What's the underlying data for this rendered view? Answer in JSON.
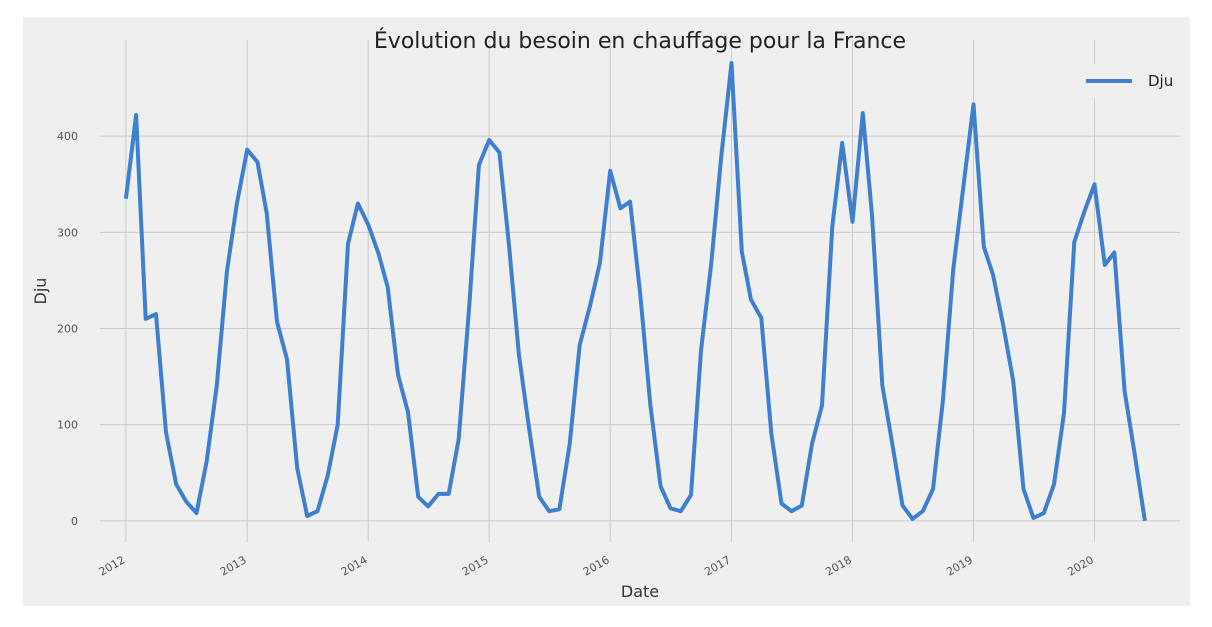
{
  "chart_data": {
    "type": "line",
    "title": "Évolution du besoin en chauffage pour la France",
    "xlabel": "Date",
    "ylabel": "Dju",
    "x_type": "date",
    "xlim": [
      "2011-10-15",
      "2020-09-15"
    ],
    "ylim": [
      -22,
      500
    ],
    "yticks": [
      0,
      100,
      200,
      300,
      400
    ],
    "xticks": [
      "2012",
      "2013",
      "2014",
      "2015",
      "2016",
      "2017",
      "2018",
      "2019",
      "2020"
    ],
    "grid": true,
    "legend": {
      "position": "top-right"
    },
    "series": [
      {
        "name": "Dju",
        "color": "#3f7fcf",
        "x": [
          "2012-01",
          "2012-02",
          "2012-03",
          "2012-04",
          "2012-05",
          "2012-06",
          "2012-07",
          "2012-08",
          "2012-09",
          "2012-10",
          "2012-11",
          "2012-12",
          "2013-01",
          "2013-02",
          "2013-03",
          "2013-04",
          "2013-05",
          "2013-06",
          "2013-07",
          "2013-08",
          "2013-09",
          "2013-10",
          "2013-11",
          "2013-12",
          "2014-01",
          "2014-02",
          "2014-03",
          "2014-04",
          "2014-05",
          "2014-06",
          "2014-07",
          "2014-08",
          "2014-09",
          "2014-10",
          "2014-11",
          "2014-12",
          "2015-01",
          "2015-02",
          "2015-03",
          "2015-04",
          "2015-05",
          "2015-06",
          "2015-07",
          "2015-08",
          "2015-09",
          "2015-10",
          "2015-11",
          "2015-12",
          "2016-01",
          "2016-02",
          "2016-03",
          "2016-04",
          "2016-05",
          "2016-06",
          "2016-07",
          "2016-08",
          "2016-09",
          "2016-10",
          "2016-11",
          "2016-12",
          "2017-01",
          "2017-02",
          "2017-03",
          "2017-04",
          "2017-05",
          "2017-06",
          "2017-07",
          "2017-08",
          "2017-09",
          "2017-10",
          "2017-11",
          "2017-12",
          "2018-01",
          "2018-02",
          "2018-03",
          "2018-04",
          "2018-05",
          "2018-06",
          "2018-07",
          "2018-08",
          "2018-09",
          "2018-10",
          "2018-11",
          "2018-12",
          "2019-01",
          "2019-02",
          "2019-03",
          "2019-04",
          "2019-05",
          "2019-06",
          "2019-07",
          "2019-08",
          "2019-09",
          "2019-10",
          "2019-11",
          "2019-12",
          "2020-01",
          "2020-02",
          "2020-03",
          "2020-04",
          "2020-05",
          "2020-06"
        ],
        "values": [
          335,
          422,
          210,
          215,
          92,
          38,
          20,
          8,
          62,
          140,
          260,
          330,
          386,
          373,
          320,
          207,
          168,
          55,
          5,
          10,
          47,
          100,
          288,
          330,
          308,
          278,
          243,
          152,
          113,
          25,
          15,
          28,
          28,
          85,
          220,
          370,
          396,
          383,
          290,
          172,
          97,
          25,
          10,
          12,
          80,
          183,
          223,
          268,
          364,
          325,
          332,
          235,
          121,
          36,
          13,
          10,
          27,
          177,
          268,
          378,
          476,
          280,
          230,
          211,
          91,
          18,
          10,
          16,
          80,
          120,
          306,
          393,
          311,
          424,
          318,
          141,
          80,
          16,
          2,
          10,
          33,
          126,
          262,
          346,
          433,
          285,
          256,
          203,
          145,
          33,
          3,
          8,
          38,
          112,
          290,
          321,
          350,
          266,
          279,
          135,
          70,
          0
        ]
      }
    ]
  }
}
